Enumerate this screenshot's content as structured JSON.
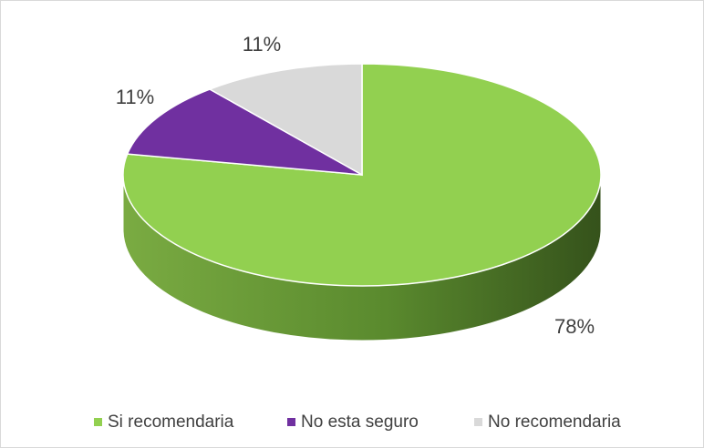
{
  "chart_data": {
    "type": "pie",
    "categories": [
      "Si recomendaria",
      "No esta seguro",
      "No recomendaria"
    ],
    "values": [
      78,
      11,
      11
    ],
    "value_labels": [
      "78%",
      "11%",
      "11%"
    ],
    "colors": [
      "#92d050",
      "#7030a0",
      "#d9d9d9"
    ],
    "legend": "bottom"
  }
}
